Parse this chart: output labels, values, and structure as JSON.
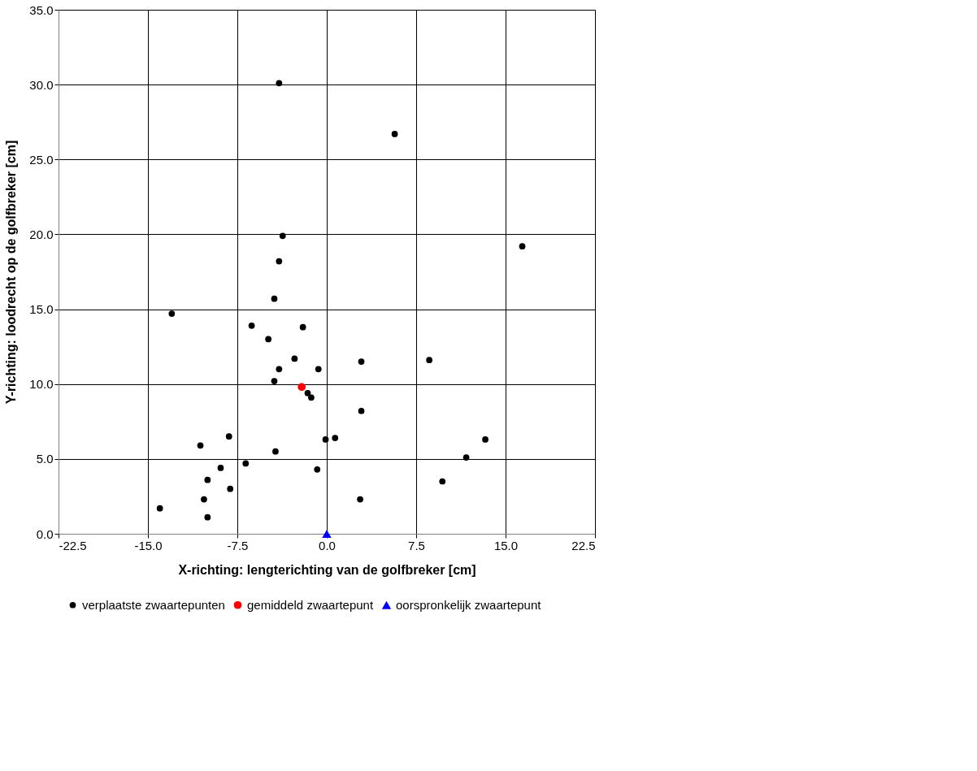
{
  "chart_data": {
    "type": "scatter",
    "xlabel": "X-richting: lengterichting van de golfbreker  [cm]",
    "ylabel": "Y-richting: loodrecht op de golfbreker [cm]",
    "xlim": [
      -22.5,
      22.5
    ],
    "ylim": [
      0,
      35
    ],
    "xticks": [
      {
        "value": -22.5,
        "label": "-22.5"
      },
      {
        "value": -15,
        "label": "-15.0"
      },
      {
        "value": -7.5,
        "label": "-7.5"
      },
      {
        "value": 0,
        "label": "0.0"
      },
      {
        "value": 7.5,
        "label": "7.5"
      },
      {
        "value": 15,
        "label": "15.0"
      },
      {
        "value": 22.5,
        "label": "22.5"
      }
    ],
    "yticks": [
      {
        "value": 0,
        "label": "0.0"
      },
      {
        "value": 5,
        "label": "5.0"
      },
      {
        "value": 10,
        "label": "10.0"
      },
      {
        "value": 15,
        "label": "15.0"
      },
      {
        "value": 20,
        "label": "20.0"
      },
      {
        "value": 25,
        "label": "25.0"
      },
      {
        "value": 30,
        "label": "30.0"
      },
      {
        "value": 35,
        "label": "35.0"
      }
    ],
    "grid": true,
    "legend": "bottom",
    "series": [
      {
        "name": "verplaatste zwaartepunten",
        "color": "#000000",
        "marker": "circle",
        "x": [
          -4.0,
          5.7,
          -3.7,
          16.4,
          -4.0,
          -4.4,
          -13.0,
          -6.3,
          -2.0,
          -4.9,
          -2.7,
          2.9,
          8.6,
          -4.0,
          -0.7,
          -4.4,
          -1.6,
          -1.3,
          2.9,
          -10.6,
          -8.2,
          -0.1,
          0.7,
          13.3,
          -4.3,
          11.7,
          -6.8,
          -8.9,
          -0.8,
          -10.0,
          9.7,
          -8.1,
          -10.3,
          2.8,
          -14.0,
          -10.0
        ],
        "values": [
          30.1,
          26.7,
          19.9,
          19.2,
          18.2,
          15.7,
          14.7,
          13.9,
          13.8,
          13.0,
          11.7,
          11.5,
          11.6,
          11.0,
          11.0,
          10.2,
          9.4,
          9.1,
          8.2,
          5.9,
          6.5,
          6.3,
          6.4,
          6.3,
          5.5,
          5.1,
          4.7,
          4.4,
          4.3,
          3.6,
          3.5,
          3.0,
          2.3,
          2.3,
          1.7,
          1.1
        ]
      },
      {
        "name": "gemiddeld zwaartepunt",
        "color": "#ff0000",
        "marker": "circle",
        "x": [
          -2.1
        ],
        "values": [
          9.8
        ]
      },
      {
        "name": "oorspronkelijk zwaartepunt",
        "color": "#0000ff",
        "marker": "triangle",
        "x": [
          0.0
        ],
        "values": [
          0.0
        ]
      }
    ]
  }
}
